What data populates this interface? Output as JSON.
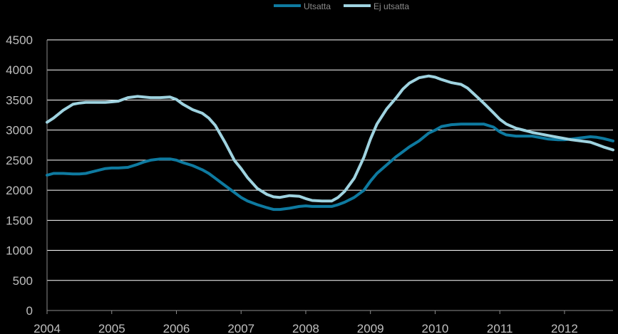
{
  "chart_data": {
    "type": "line",
    "title": "",
    "xlabel": "",
    "ylabel": "",
    "ylim": [
      0,
      4500
    ],
    "yticks": [
      0,
      500,
      1000,
      1500,
      2000,
      2500,
      3000,
      3500,
      4000,
      4500
    ],
    "xlim": [
      2004.0,
      2012.75
    ],
    "xticks": [
      "2004",
      "2005",
      "2006",
      "2007",
      "2008",
      "2009",
      "2010",
      "2011",
      "2012"
    ],
    "grid": true,
    "legend": "top-center",
    "series": [
      {
        "name": "Utsatta",
        "color": "#0e7aa0",
        "x": [
          2004.0,
          2004.1,
          2004.25,
          2004.4,
          2004.5,
          2004.6,
          2004.75,
          2004.9,
          2005.0,
          2005.1,
          2005.25,
          2005.4,
          2005.5,
          2005.6,
          2005.75,
          2005.9,
          2006.0,
          2006.1,
          2006.25,
          2006.4,
          2006.5,
          2006.6,
          2006.75,
          2006.9,
          2007.0,
          2007.1,
          2007.25,
          2007.4,
          2007.5,
          2007.6,
          2007.75,
          2007.9,
          2008.0,
          2008.1,
          2008.25,
          2008.4,
          2008.5,
          2008.6,
          2008.75,
          2008.9,
          2009.0,
          2009.1,
          2009.25,
          2009.4,
          2009.5,
          2009.6,
          2009.75,
          2009.9,
          2010.0,
          2010.1,
          2010.25,
          2010.4,
          2010.5,
          2010.6,
          2010.75,
          2010.9,
          2011.0,
          2011.1,
          2011.25,
          2011.4,
          2011.5,
          2011.6,
          2011.75,
          2011.9,
          2012.0,
          2012.1,
          2012.25,
          2012.4,
          2012.5,
          2012.6,
          2012.75
        ],
        "values": [
          2250,
          2280,
          2280,
          2270,
          2270,
          2280,
          2320,
          2360,
          2370,
          2370,
          2380,
          2430,
          2470,
          2500,
          2520,
          2520,
          2500,
          2460,
          2410,
          2340,
          2280,
          2200,
          2080,
          1960,
          1880,
          1820,
          1760,
          1710,
          1680,
          1680,
          1700,
          1730,
          1740,
          1730,
          1730,
          1730,
          1760,
          1800,
          1880,
          2000,
          2150,
          2280,
          2420,
          2560,
          2640,
          2720,
          2820,
          2950,
          3000,
          3060,
          3090,
          3100,
          3100,
          3100,
          3100,
          3050,
          2970,
          2920,
          2900,
          2900,
          2900,
          2880,
          2850,
          2840,
          2840,
          2850,
          2870,
          2890,
          2880,
          2860,
          2820
        ]
      },
      {
        "name": "Ej utsatta",
        "color": "#9fd3e0",
        "x": [
          2004.0,
          2004.1,
          2004.25,
          2004.4,
          2004.5,
          2004.6,
          2004.75,
          2004.9,
          2005.0,
          2005.1,
          2005.25,
          2005.4,
          2005.5,
          2005.6,
          2005.75,
          2005.9,
          2006.0,
          2006.1,
          2006.25,
          2006.4,
          2006.5,
          2006.6,
          2006.75,
          2006.9,
          2007.0,
          2007.1,
          2007.25,
          2007.4,
          2007.5,
          2007.6,
          2007.75,
          2007.9,
          2008.0,
          2008.1,
          2008.25,
          2008.4,
          2008.5,
          2008.6,
          2008.75,
          2008.9,
          2009.0,
          2009.1,
          2009.25,
          2009.4,
          2009.5,
          2009.6,
          2009.75,
          2009.9,
          2010.0,
          2010.1,
          2010.25,
          2010.4,
          2010.5,
          2010.6,
          2010.75,
          2010.9,
          2011.0,
          2011.1,
          2011.25,
          2011.4,
          2011.5,
          2011.6,
          2011.75,
          2011.9,
          2012.0,
          2012.1,
          2012.25,
          2012.4,
          2012.5,
          2012.6,
          2012.75
        ],
        "values": [
          3130,
          3200,
          3330,
          3430,
          3450,
          3460,
          3460,
          3460,
          3470,
          3480,
          3540,
          3560,
          3550,
          3540,
          3540,
          3550,
          3510,
          3430,
          3340,
          3280,
          3200,
          3080,
          2800,
          2490,
          2360,
          2210,
          2030,
          1930,
          1890,
          1880,
          1910,
          1900,
          1860,
          1830,
          1820,
          1820,
          1880,
          1980,
          2200,
          2550,
          2850,
          3100,
          3350,
          3540,
          3680,
          3780,
          3870,
          3900,
          3880,
          3840,
          3790,
          3760,
          3700,
          3600,
          3450,
          3290,
          3180,
          3100,
          3030,
          2990,
          2960,
          2940,
          2910,
          2880,
          2860,
          2840,
          2820,
          2800,
          2760,
          2720,
          2670
        ]
      }
    ]
  }
}
